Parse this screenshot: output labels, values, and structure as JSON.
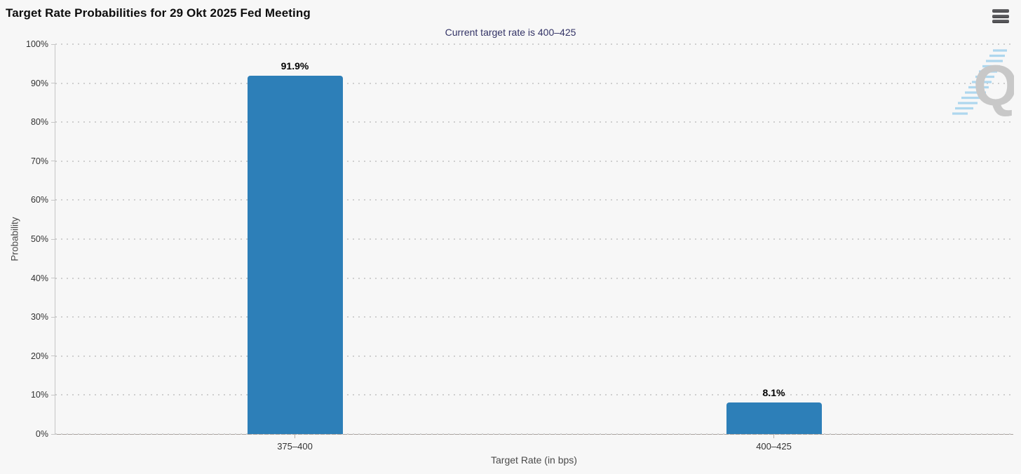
{
  "header": {
    "title": "Target Rate Probabilities for 29 Okt 2025 Fed Meeting",
    "menu_icon": "hamburger-icon"
  },
  "subtitle": "Current target rate is 400–425",
  "watermark_letter": "Q",
  "colors": {
    "background": "#f7f7f7",
    "bar": "#2d7fb8",
    "subtitle_text": "#333366",
    "gridline": "#cfcfcf",
    "y_axis_line": "#c6c6c6",
    "x_axis_line": "#a9a29d",
    "watermark_q": "#c8c8c8",
    "watermark_dashes": "#aed7ee",
    "menu_icon": "#57575a"
  },
  "chart_data": {
    "type": "bar",
    "title": "Target Rate Probabilities for 29 Okt 2025 Fed Meeting",
    "subtitle": "Current target rate is 400–425",
    "categories": [
      "375–400",
      "400–425"
    ],
    "values": [
      91.9,
      8.1
    ],
    "value_labels": [
      "91.9%",
      "8.1%"
    ],
    "xlabel": "Target Rate (in bps)",
    "ylabel": "Probability",
    "ylim": [
      0,
      100
    ],
    "ytick_step": 10,
    "ytick_labels": [
      "0%",
      "10%",
      "20%",
      "30%",
      "40%",
      "50%",
      "60%",
      "70%",
      "80%",
      "90%",
      "100%"
    ],
    "grid": "dotted horizontal",
    "legend": "none"
  }
}
